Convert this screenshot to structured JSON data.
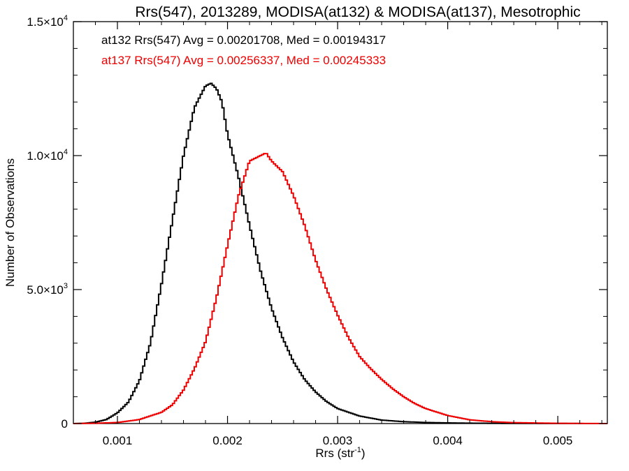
{
  "chart_data": {
    "type": "line",
    "title": "Rrs(547), 2013289, MODISA(at132) & MODISA(at137), Mesotrophic",
    "xlabel": {
      "base": "Rrs (str",
      "sup": "-1",
      "tail": ")"
    },
    "ylabel": "Number of Observations",
    "xlim": [
      0.0006,
      0.00545
    ],
    "ylim": [
      0,
      15000
    ],
    "grid": false,
    "x_ticks": [
      {
        "value": 0.001,
        "label": "0.001"
      },
      {
        "value": 0.002,
        "label": "0.002"
      },
      {
        "value": 0.003,
        "label": "0.003"
      },
      {
        "value": 0.004,
        "label": "0.004"
      },
      {
        "value": 0.005,
        "label": "0.005"
      }
    ],
    "y_ticks": [
      {
        "value": 0,
        "label": "0",
        "sup": ""
      },
      {
        "value": 5000,
        "label": "5.0×10",
        "sup": "3"
      },
      {
        "value": 10000,
        "label": "1.0×10",
        "sup": "4"
      },
      {
        "value": 15000,
        "label": "1.5×10",
        "sup": "4"
      }
    ],
    "annotations": [
      {
        "text": "at132 Rrs(547) Avg = 0.00201708, Med = 0.00194317",
        "color": "#000000"
      },
      {
        "text": "at137 Rrs(547) Avg = 0.00256337, Med = 0.00245333",
        "color": "#ee0000"
      }
    ],
    "series": [
      {
        "color": "#000000",
        "style": "step",
        "x": [
          0.0006,
          0.0007,
          0.0008,
          0.0009,
          0.001,
          0.0011,
          0.0012,
          0.0013,
          0.0014,
          0.0015,
          0.0016,
          0.0017,
          0.0018,
          0.00185,
          0.0019,
          0.00195,
          0.002,
          0.0021,
          0.0022,
          0.0023,
          0.0024,
          0.0025,
          0.0026,
          0.0027,
          0.0028,
          0.0029,
          0.003,
          0.0032,
          0.0034,
          0.0036,
          0.0038,
          0.004,
          0.0042,
          0.0045,
          0.005,
          0.00545
        ],
        "values": [
          0,
          10,
          50,
          150,
          400,
          800,
          1600,
          3000,
          5200,
          7600,
          10000,
          11800,
          12600,
          12700,
          12500,
          12000,
          10800,
          9200,
          7400,
          5700,
          4300,
          3200,
          2300,
          1650,
          1180,
          820,
          560,
          280,
          130,
          70,
          40,
          25,
          15,
          8,
          3,
          0
        ]
      },
      {
        "color": "#ee0000",
        "style": "step",
        "x": [
          0.0006,
          0.0008,
          0.001,
          0.0012,
          0.0014,
          0.0015,
          0.0016,
          0.0017,
          0.0018,
          0.0019,
          0.002,
          0.0021,
          0.0022,
          0.0023,
          0.00235,
          0.0024,
          0.0025,
          0.0026,
          0.0027,
          0.0028,
          0.0029,
          0.003,
          0.0031,
          0.0032,
          0.0033,
          0.0034,
          0.0035,
          0.0036,
          0.0037,
          0.0038,
          0.004,
          0.0042,
          0.0044,
          0.0046,
          0.005,
          0.00545
        ],
        "values": [
          0,
          10,
          40,
          150,
          420,
          700,
          1250,
          2050,
          3050,
          4700,
          6650,
          8500,
          9800,
          10000,
          10100,
          9800,
          9400,
          8500,
          7400,
          6100,
          5000,
          4050,
          3200,
          2500,
          2050,
          1650,
          1300,
          1000,
          750,
          560,
          300,
          140,
          70,
          35,
          10,
          0
        ]
      }
    ]
  }
}
